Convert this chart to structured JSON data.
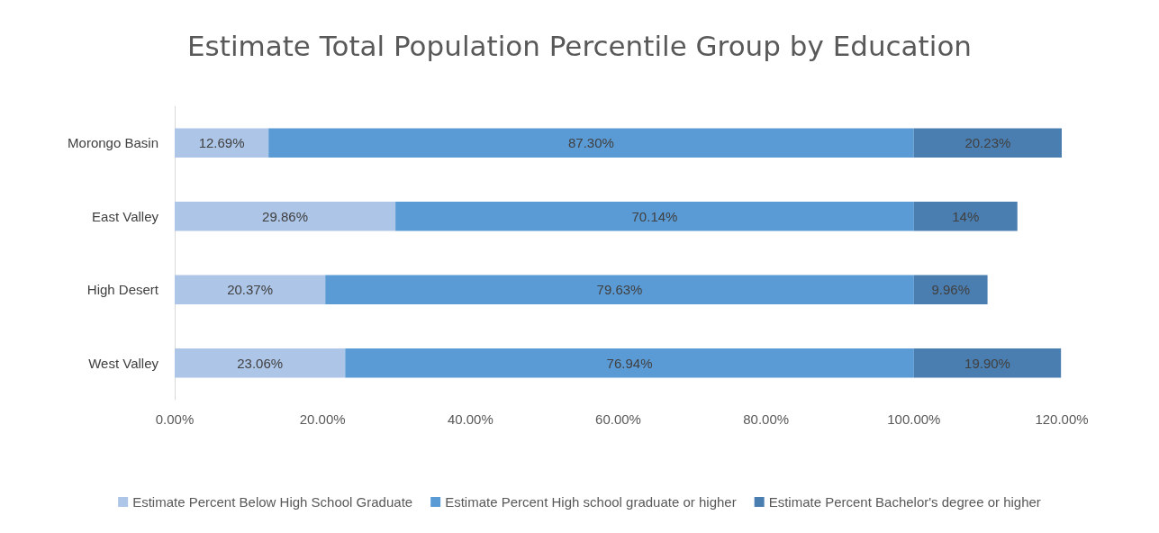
{
  "chart_data": {
    "type": "bar",
    "orientation": "horizontal",
    "stacked": true,
    "title": "Estimate Total Population Percentile Group by Education",
    "categories": [
      "Morongo Basin",
      "East Valley",
      "High Desert",
      "West Valley"
    ],
    "series": [
      {
        "name": "Estimate Percent Below High School Graduate",
        "color": "#adc5e7",
        "values": [
          12.69,
          29.86,
          20.37,
          23.06
        ],
        "value_labels": [
          "12.69%",
          "29.86%",
          "20.37%",
          "23.06%"
        ]
      },
      {
        "name": "Estimate Percent High school graduate or higher",
        "color": "#5b9bd5",
        "values": [
          87.3,
          70.14,
          79.63,
          76.94
        ],
        "value_labels": [
          "87.30%",
          "70.14%",
          "79.63%",
          "76.94%"
        ]
      },
      {
        "name": "Estimate Percent Bachelor's degree or higher",
        "color": "#4a7eb0",
        "values": [
          20.23,
          14,
          9.96,
          19.9
        ],
        "value_labels": [
          "20.23%",
          "14%",
          "9.96%",
          "19.90%"
        ]
      }
    ],
    "xlim": [
      0,
      120
    ],
    "xticks": [
      {
        "value": 0,
        "label": "0.00%"
      },
      {
        "value": 20,
        "label": "20.00%"
      },
      {
        "value": 40,
        "label": "40.00%"
      },
      {
        "value": 60,
        "label": "60.00%"
      },
      {
        "value": 80,
        "label": "80.00%"
      },
      {
        "value": 100,
        "label": "100.00%"
      },
      {
        "value": 120,
        "label": "120.00%"
      }
    ],
    "grid": false,
    "legend": "bottom"
  }
}
